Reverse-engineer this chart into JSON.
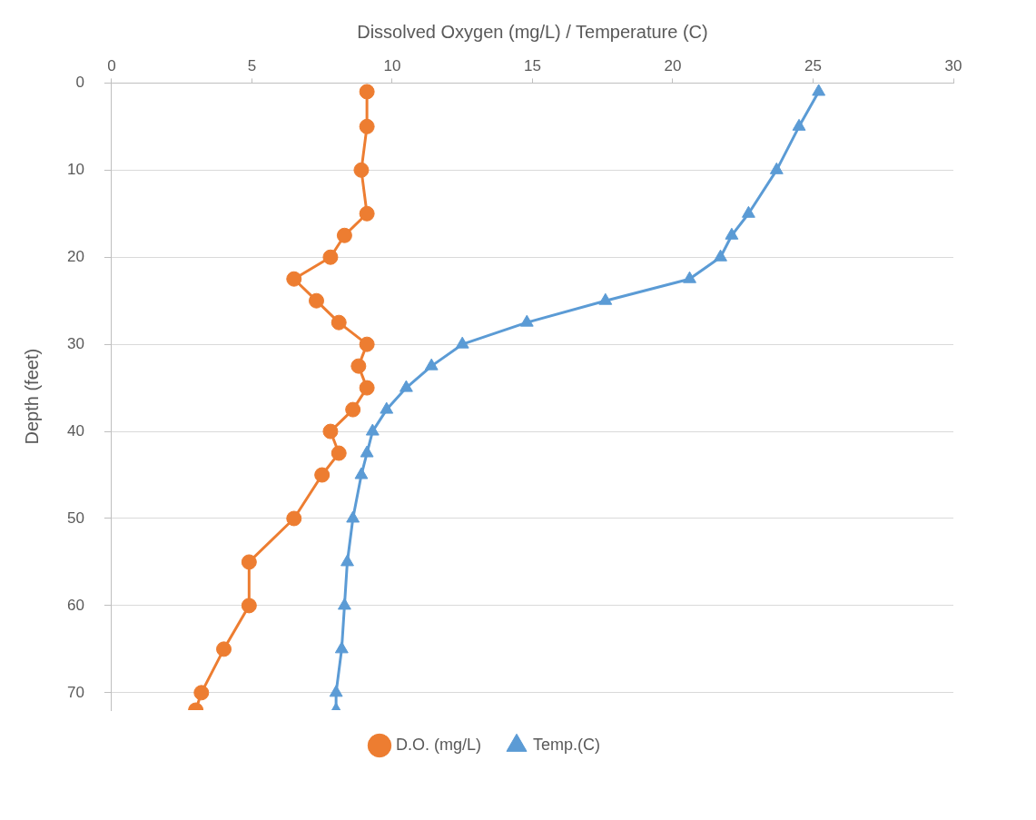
{
  "chart_data": {
    "type": "line",
    "orientation": "horizontal",
    "xlabel": "Dissolved Oxygen (mg/L) / Temperature (C)",
    "ylabel": "Depth (feet)",
    "xlim": [
      0,
      30
    ],
    "xticks": [
      0,
      5,
      10,
      15,
      20,
      25,
      30
    ],
    "ylim": [
      72,
      0
    ],
    "yticks": [
      0,
      10,
      20,
      30,
      40,
      50,
      60,
      70
    ],
    "grid": "y",
    "legend": "bottom",
    "series": [
      {
        "name": "Temp.(C)",
        "color": "#5b9bd5",
        "marker": "triangle",
        "values": [
          25.2,
          24.5,
          23.7,
          22.7,
          22.1,
          21.7,
          20.6,
          17.6,
          14.8,
          12.5,
          11.4,
          10.5,
          9.8,
          9.3,
          9.1,
          8.9,
          8.6,
          8.4,
          8.3,
          8.2,
          8.0,
          8.0
        ],
        "x": [
          1,
          5,
          10,
          15,
          17.5,
          20,
          22.5,
          25,
          27.5,
          30,
          32.5,
          35,
          37.5,
          40,
          42.5,
          45,
          50,
          55,
          60,
          65,
          70,
          72
        ]
      },
      {
        "name": "D.O. (mg/L)",
        "color": "#ed7d31",
        "marker": "circle",
        "values": [
          9.1,
          9.1,
          8.9,
          9.1,
          8.3,
          7.8,
          6.5,
          7.3,
          8.1,
          9.1,
          8.8,
          9.1,
          8.6,
          7.8,
          8.1,
          7.5,
          6.5,
          4.9,
          4.9,
          4.0,
          3.2,
          3.0
        ],
        "x": [
          1,
          5,
          10,
          15,
          17.5,
          20,
          22.5,
          25,
          27.5,
          30,
          32.5,
          35,
          37.5,
          40,
          42.5,
          45,
          50,
          55,
          60,
          65,
          70,
          72
        ]
      }
    ]
  }
}
